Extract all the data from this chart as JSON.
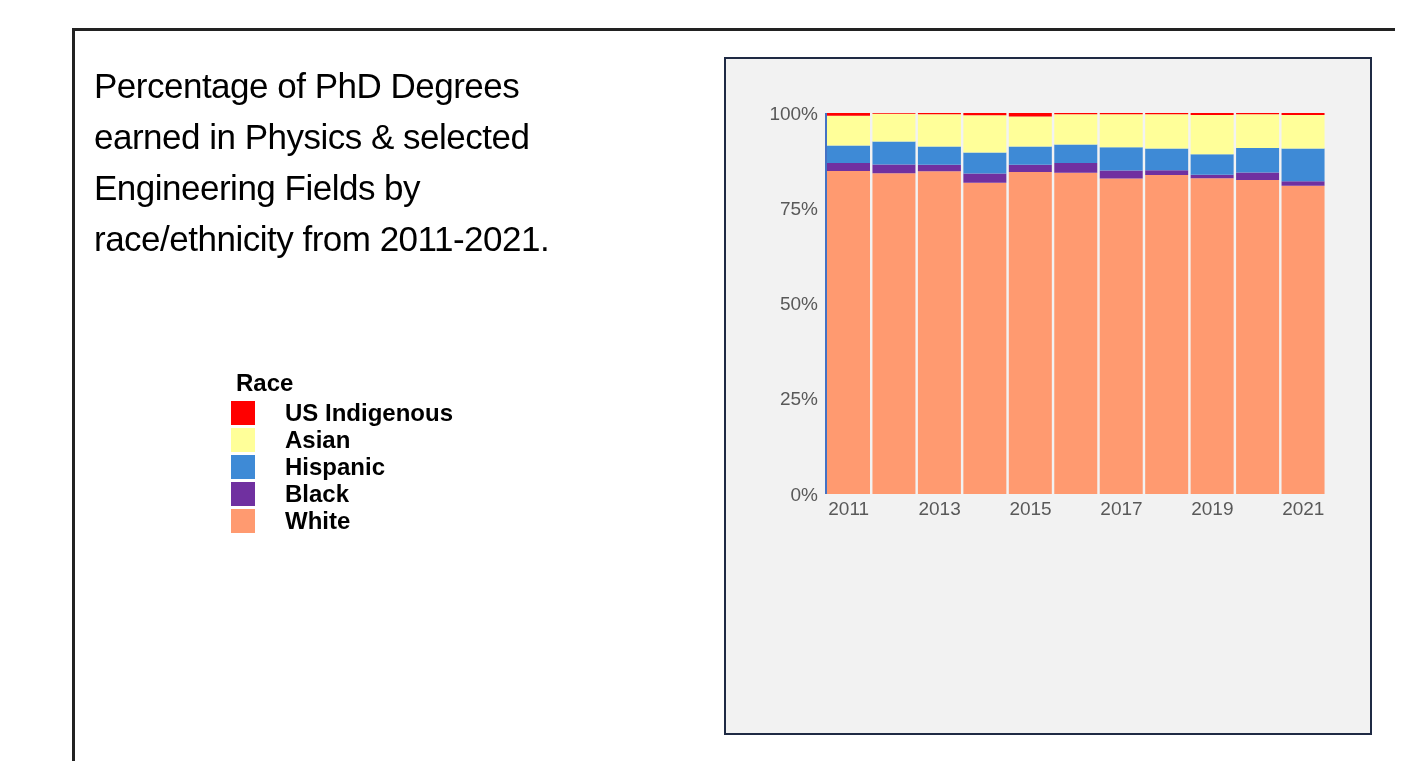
{
  "chart_data": {
    "type": "bar",
    "title": "Percentage of PhD Degrees earned in Physics & selected Engineering Fields by race/ethnicity from 2011-2021.",
    "legend_title": "Race",
    "categories": [
      "2011",
      null,
      "2013",
      null,
      "2015",
      null,
      "2017",
      null,
      "2019",
      null,
      "2021"
    ],
    "stacked": true,
    "series": [
      {
        "name": "White",
        "color": "#ff9a70",
        "values": [
          84.8,
          84.2,
          84.7,
          81.7,
          84.5,
          84.3,
          82.8,
          83.7,
          82.9,
          82.4,
          80.9
        ]
      },
      {
        "name": "Black",
        "color": "#7030a0",
        "values": [
          2.1,
          2.3,
          1.7,
          2.4,
          1.9,
          2.6,
          2.1,
          1.3,
          0.9,
          2.0,
          1.2
        ]
      },
      {
        "name": "Hispanic",
        "color": "#3e8ad6",
        "values": [
          4.6,
          6.0,
          4.8,
          5.5,
          4.8,
          4.8,
          6.1,
          5.7,
          5.4,
          6.4,
          8.6
        ]
      },
      {
        "name": "Asian",
        "color": "#ffff99",
        "values": [
          7.8,
          7.3,
          8.5,
          9.8,
          7.9,
          8.0,
          8.7,
          9.0,
          10.3,
          8.9,
          8.8
        ]
      },
      {
        "name": "US Indigenous",
        "color": "#ff0000",
        "values": [
          0.7,
          0.2,
          0.3,
          0.6,
          0.9,
          0.3,
          0.3,
          0.3,
          0.5,
          0.3,
          0.5
        ]
      }
    ],
    "ylim": [
      0,
      100
    ],
    "yticks": [
      {
        "value": 0,
        "label": "0%"
      },
      {
        "value": 25,
        "label": "25%"
      },
      {
        "value": 50,
        "label": "50%"
      },
      {
        "value": 75,
        "label": "75%"
      },
      {
        "value": 100,
        "label": "100%"
      }
    ],
    "grid": false,
    "legend": "left"
  }
}
